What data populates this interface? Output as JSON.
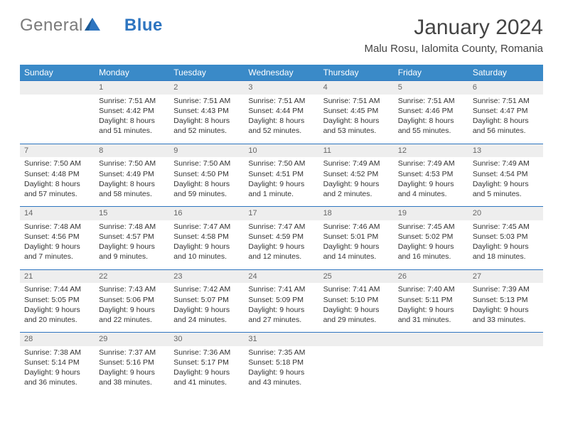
{
  "logo": {
    "text1": "General",
    "text2": "Blue"
  },
  "title": "January 2024",
  "location": "Malu Rosu, Ialomita County, Romania",
  "colors": {
    "header_bg": "#3a8ac8",
    "accent": "#2e75c0",
    "daynum_bg": "#eeeeee",
    "text": "#333333"
  },
  "weekdays": [
    "Sunday",
    "Monday",
    "Tuesday",
    "Wednesday",
    "Thursday",
    "Friday",
    "Saturday"
  ],
  "weeks": [
    {
      "nums": [
        "",
        "1",
        "2",
        "3",
        "4",
        "5",
        "6"
      ],
      "cells": [
        {
          "sunrise": "",
          "sunset": "",
          "daylight": ""
        },
        {
          "sunrise": "Sunrise: 7:51 AM",
          "sunset": "Sunset: 4:42 PM",
          "daylight": "Daylight: 8 hours and 51 minutes."
        },
        {
          "sunrise": "Sunrise: 7:51 AM",
          "sunset": "Sunset: 4:43 PM",
          "daylight": "Daylight: 8 hours and 52 minutes."
        },
        {
          "sunrise": "Sunrise: 7:51 AM",
          "sunset": "Sunset: 4:44 PM",
          "daylight": "Daylight: 8 hours and 52 minutes."
        },
        {
          "sunrise": "Sunrise: 7:51 AM",
          "sunset": "Sunset: 4:45 PM",
          "daylight": "Daylight: 8 hours and 53 minutes."
        },
        {
          "sunrise": "Sunrise: 7:51 AM",
          "sunset": "Sunset: 4:46 PM",
          "daylight": "Daylight: 8 hours and 55 minutes."
        },
        {
          "sunrise": "Sunrise: 7:51 AM",
          "sunset": "Sunset: 4:47 PM",
          "daylight": "Daylight: 8 hours and 56 minutes."
        }
      ]
    },
    {
      "nums": [
        "7",
        "8",
        "9",
        "10",
        "11",
        "12",
        "13"
      ],
      "cells": [
        {
          "sunrise": "Sunrise: 7:50 AM",
          "sunset": "Sunset: 4:48 PM",
          "daylight": "Daylight: 8 hours and 57 minutes."
        },
        {
          "sunrise": "Sunrise: 7:50 AM",
          "sunset": "Sunset: 4:49 PM",
          "daylight": "Daylight: 8 hours and 58 minutes."
        },
        {
          "sunrise": "Sunrise: 7:50 AM",
          "sunset": "Sunset: 4:50 PM",
          "daylight": "Daylight: 8 hours and 59 minutes."
        },
        {
          "sunrise": "Sunrise: 7:50 AM",
          "sunset": "Sunset: 4:51 PM",
          "daylight": "Daylight: 9 hours and 1 minute."
        },
        {
          "sunrise": "Sunrise: 7:49 AM",
          "sunset": "Sunset: 4:52 PM",
          "daylight": "Daylight: 9 hours and 2 minutes."
        },
        {
          "sunrise": "Sunrise: 7:49 AM",
          "sunset": "Sunset: 4:53 PM",
          "daylight": "Daylight: 9 hours and 4 minutes."
        },
        {
          "sunrise": "Sunrise: 7:49 AM",
          "sunset": "Sunset: 4:54 PM",
          "daylight": "Daylight: 9 hours and 5 minutes."
        }
      ]
    },
    {
      "nums": [
        "14",
        "15",
        "16",
        "17",
        "18",
        "19",
        "20"
      ],
      "cells": [
        {
          "sunrise": "Sunrise: 7:48 AM",
          "sunset": "Sunset: 4:56 PM",
          "daylight": "Daylight: 9 hours and 7 minutes."
        },
        {
          "sunrise": "Sunrise: 7:48 AM",
          "sunset": "Sunset: 4:57 PM",
          "daylight": "Daylight: 9 hours and 9 minutes."
        },
        {
          "sunrise": "Sunrise: 7:47 AM",
          "sunset": "Sunset: 4:58 PM",
          "daylight": "Daylight: 9 hours and 10 minutes."
        },
        {
          "sunrise": "Sunrise: 7:47 AM",
          "sunset": "Sunset: 4:59 PM",
          "daylight": "Daylight: 9 hours and 12 minutes."
        },
        {
          "sunrise": "Sunrise: 7:46 AM",
          "sunset": "Sunset: 5:01 PM",
          "daylight": "Daylight: 9 hours and 14 minutes."
        },
        {
          "sunrise": "Sunrise: 7:45 AM",
          "sunset": "Sunset: 5:02 PM",
          "daylight": "Daylight: 9 hours and 16 minutes."
        },
        {
          "sunrise": "Sunrise: 7:45 AM",
          "sunset": "Sunset: 5:03 PM",
          "daylight": "Daylight: 9 hours and 18 minutes."
        }
      ]
    },
    {
      "nums": [
        "21",
        "22",
        "23",
        "24",
        "25",
        "26",
        "27"
      ],
      "cells": [
        {
          "sunrise": "Sunrise: 7:44 AM",
          "sunset": "Sunset: 5:05 PM",
          "daylight": "Daylight: 9 hours and 20 minutes."
        },
        {
          "sunrise": "Sunrise: 7:43 AM",
          "sunset": "Sunset: 5:06 PM",
          "daylight": "Daylight: 9 hours and 22 minutes."
        },
        {
          "sunrise": "Sunrise: 7:42 AM",
          "sunset": "Sunset: 5:07 PM",
          "daylight": "Daylight: 9 hours and 24 minutes."
        },
        {
          "sunrise": "Sunrise: 7:41 AM",
          "sunset": "Sunset: 5:09 PM",
          "daylight": "Daylight: 9 hours and 27 minutes."
        },
        {
          "sunrise": "Sunrise: 7:41 AM",
          "sunset": "Sunset: 5:10 PM",
          "daylight": "Daylight: 9 hours and 29 minutes."
        },
        {
          "sunrise": "Sunrise: 7:40 AM",
          "sunset": "Sunset: 5:11 PM",
          "daylight": "Daylight: 9 hours and 31 minutes."
        },
        {
          "sunrise": "Sunrise: 7:39 AM",
          "sunset": "Sunset: 5:13 PM",
          "daylight": "Daylight: 9 hours and 33 minutes."
        }
      ]
    },
    {
      "nums": [
        "28",
        "29",
        "30",
        "31",
        "",
        "",
        ""
      ],
      "cells": [
        {
          "sunrise": "Sunrise: 7:38 AM",
          "sunset": "Sunset: 5:14 PM",
          "daylight": "Daylight: 9 hours and 36 minutes."
        },
        {
          "sunrise": "Sunrise: 7:37 AM",
          "sunset": "Sunset: 5:16 PM",
          "daylight": "Daylight: 9 hours and 38 minutes."
        },
        {
          "sunrise": "Sunrise: 7:36 AM",
          "sunset": "Sunset: 5:17 PM",
          "daylight": "Daylight: 9 hours and 41 minutes."
        },
        {
          "sunrise": "Sunrise: 7:35 AM",
          "sunset": "Sunset: 5:18 PM",
          "daylight": "Daylight: 9 hours and 43 minutes."
        },
        {
          "sunrise": "",
          "sunset": "",
          "daylight": ""
        },
        {
          "sunrise": "",
          "sunset": "",
          "daylight": ""
        },
        {
          "sunrise": "",
          "sunset": "",
          "daylight": ""
        }
      ]
    }
  ]
}
